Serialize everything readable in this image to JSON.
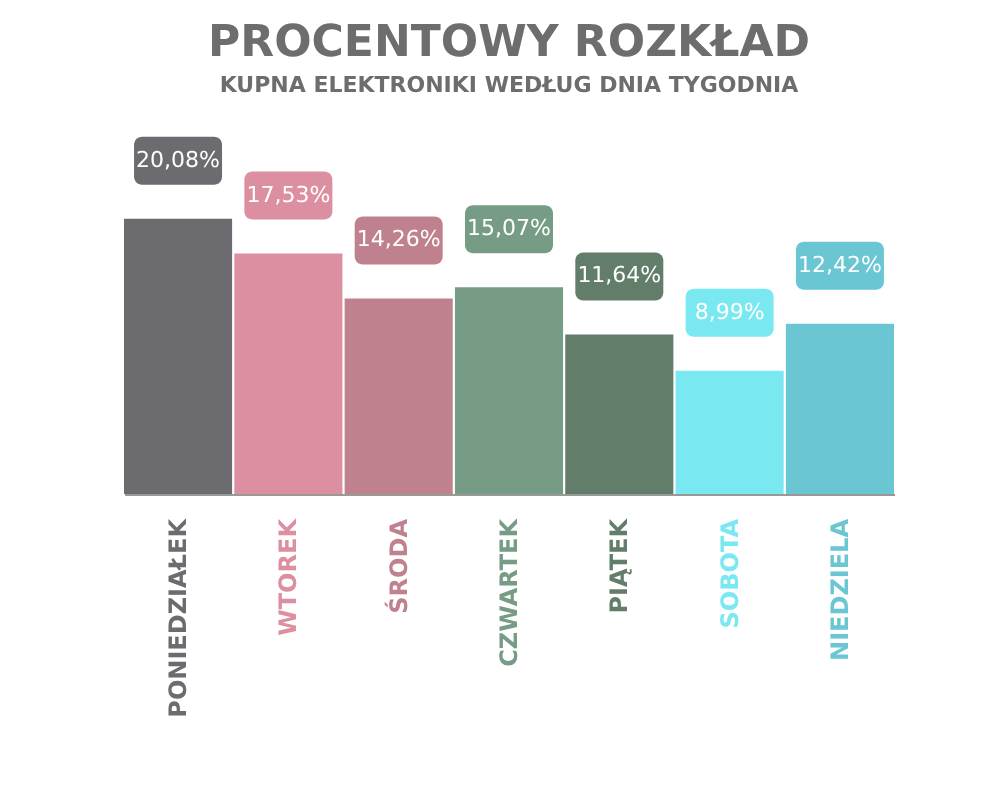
{
  "chart_data": {
    "type": "bar",
    "title": "PROCENTOWY ROZKŁAD",
    "subtitle": "KUPNA ELEKTRONIKI WEDŁUG DNIA TYGODNIA",
    "categories": [
      "PONIEDZIAŁEK",
      "WTOREK",
      "ŚRODA",
      "CZWARTEK",
      "PIĄTEK",
      "SOBOTA",
      "NIEDZIELA"
    ],
    "values": [
      20.08,
      17.53,
      14.26,
      15.07,
      11.64,
      8.99,
      12.42
    ],
    "value_labels": [
      "20,08%",
      "17,53%",
      "14,26%",
      "15,07%",
      "11,64%",
      "8,99%",
      "12,42%"
    ],
    "colors": [
      "#6b6b70",
      "#dc8fa0",
      "#c0818f",
      "#779c85",
      "#627d6a",
      "#7ae8f0",
      "#69c6d2"
    ],
    "legend": false
  }
}
